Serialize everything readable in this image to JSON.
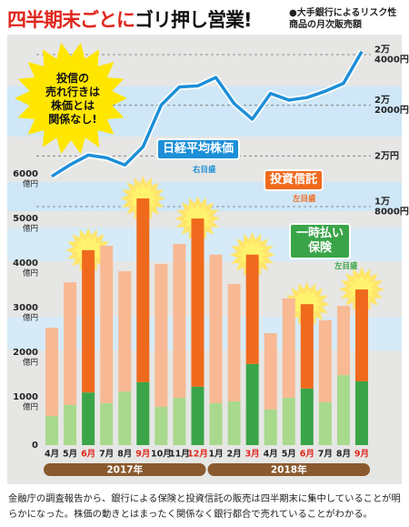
{
  "chart_data": {
    "type": "bar",
    "title_parts": [
      "四半期末ごとに",
      "ゴリ押し営業!"
    ],
    "subtitle_lines": [
      "●大手銀行によるリスク性",
      "商品の月次販売額"
    ],
    "annotation": [
      "投信の",
      "売れ行きは",
      "株価とは",
      "関係なし!"
    ],
    "caption": "金融庁の調査報告から、銀行による保険と投資信託の販売は四半期末に集中していることが明らかになった。株価の動きとはまったく関係なく銀行都合で売れていることがわかる。",
    "categories": [
      "4月",
      "5月",
      "6月",
      "7月",
      "8月",
      "9月",
      "10月",
      "11月",
      "12月",
      "1月",
      "2月",
      "3月",
      "4月",
      "5月",
      "6月",
      "7月",
      "8月",
      "9月"
    ],
    "years": [
      "2017年",
      "2018年"
    ],
    "y_unit": "億円",
    "ylim": [
      0,
      6000
    ],
    "yticks": [
      0,
      1000,
      2000,
      3000,
      4000,
      5000,
      6000
    ],
    "y2lim": [
      18000,
      24000
    ],
    "y2ticks": [
      {
        "value": 18000,
        "label": [
          "1万",
          "8000円"
        ]
      },
      {
        "value": 20000,
        "label": [
          "2万円"
        ]
      },
      {
        "value": 22000,
        "label": [
          "2万",
          "2000円"
        ]
      },
      {
        "value": 24000,
        "label": [
          "2万",
          "4000円"
        ]
      }
    ],
    "series": [
      {
        "name": "投資信託",
        "axis_note": "左目盛",
        "color": "#f06a1e",
        "pale_color": "#f8b994",
        "values": [
          1980,
          2750,
          3190,
          3530,
          2700,
          4120,
          3200,
          3450,
          3770,
          3330,
          2630,
          2450,
          1710,
          2230,
          1890,
          1840,
          1550,
          2060
        ]
      },
      {
        "name": "一時払い保険",
        "axis_note": "左目盛",
        "color": "#3aa548",
        "pale_color": "#a8d98c",
        "values": [
          650,
          900,
          1180,
          940,
          1200,
          1410,
          860,
          1060,
          1310,
          940,
          980,
          1820,
          800,
          1060,
          1270,
          960,
          1570,
          1430
        ]
      },
      {
        "name": "日経平均株価",
        "axis_note": "右目盛",
        "color": "#1d8fd8",
        "type": "line",
        "axis": "y2",
        "values": [
          19197,
          19650,
          20033,
          19925,
          19646,
          20356,
          22011,
          22724,
          22765,
          23098,
          22068,
          21454,
          22468,
          22202,
          22305,
          22554,
          22865,
          24120
        ]
      }
    ]
  }
}
